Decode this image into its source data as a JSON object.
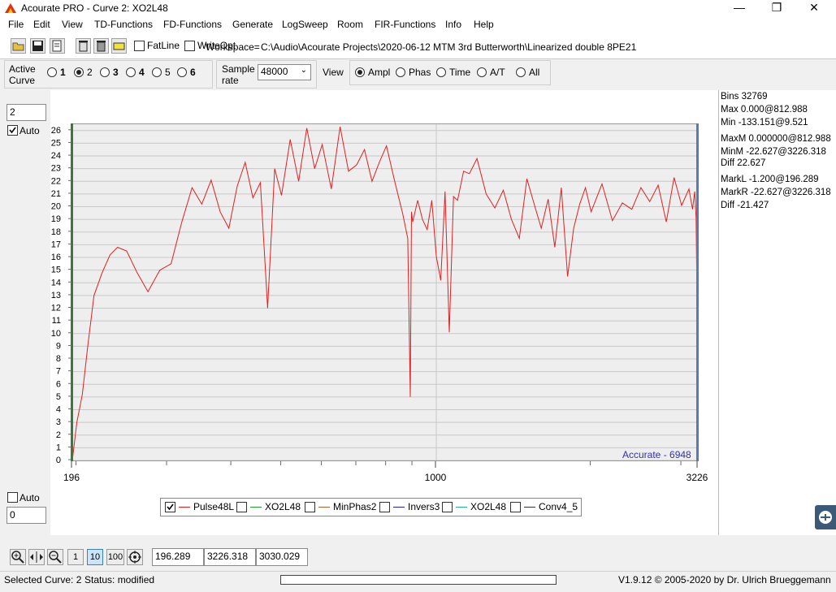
{
  "window": {
    "title": "Acourate PRO - Curve 2: XO2L48",
    "minimize": "—",
    "maximize": "❐",
    "close": "✕"
  },
  "menu": [
    "File",
    "Edit",
    "View",
    "TD-Functions",
    "FD-Functions",
    "Generate",
    "LogSweep",
    "Room",
    "FIR-Functions",
    "Info",
    "Help"
  ],
  "toolbar": {
    "fatline_label": "FatLine",
    "writeopt_label": "WriteOpt",
    "workspace_label": "Workspace=",
    "workspace_path": "C:\\Audio\\Acourate Projects\\2020-06-12 MTM 3rd Butterworth\\Linearized double 8PE21"
  },
  "controls": {
    "active_curve_label": "Active\nCurve",
    "curves": [
      {
        "label": "1",
        "bold": true
      },
      {
        "label": "2",
        "bold": false,
        "selected": true
      },
      {
        "label": "3",
        "bold": true
      },
      {
        "label": "4",
        "bold": true
      },
      {
        "label": "5",
        "bold": false
      },
      {
        "label": "6",
        "bold": true
      }
    ],
    "sample_rate_label": "Sample\nrate",
    "sample_rate_value": "48000",
    "view_label": "View",
    "views": [
      {
        "label": "Ampl",
        "selected": true
      },
      {
        "label": "Phas"
      },
      {
        "label": "Time"
      },
      {
        "label": "A/T"
      },
      {
        "label": "All"
      }
    ]
  },
  "plot": {
    "ymax_input": "2",
    "ymin_input": "0",
    "auto_top_label": "Auto",
    "auto_bottom_label": "Auto",
    "watermark": "Accurate - 6948"
  },
  "legend": [
    {
      "label": "Pulse48L",
      "color": "#e02020",
      "checked": true
    },
    {
      "label": "XO2L48",
      "color": "#20a020",
      "checked": false
    },
    {
      "label": "MinPhas2",
      "color": "#b06030",
      "checked": false
    },
    {
      "label": "Invers3",
      "color": "#2020d0",
      "checked": false
    },
    {
      "label": "XO2L48",
      "color": "#20b0a0",
      "checked": false
    },
    {
      "label": "Conv4_5",
      "color": "#303030",
      "checked": false
    }
  ],
  "stats": {
    "bins": "Bins 32769",
    "max": "Max 0.000@812.988",
    "min": "Min -133.151@9.521",
    "maxm": "MaxM 0.000000@812.988",
    "minm": "MinM -22.627@3226.318",
    "diff1": "Diff 22.627",
    "markl": "MarkL -1.200@196.289",
    "markr": "MarkR -22.627@3226.318",
    "diff2": "Diff -21.427"
  },
  "bottom": {
    "zoom1": "1",
    "zoom10": "10",
    "zoom100": "100",
    "field1": "196.289",
    "field2": "3226.318",
    "field3": "3030.029"
  },
  "status": {
    "selected": "Selected Curve: 2",
    "state": "Status: modified",
    "version": "V1.9.12 © 2005-2020 by Dr. Ulrich Brueggemann"
  },
  "chart_data": {
    "type": "line",
    "xlim": [
      196,
      3226
    ],
    "ylim": [
      0,
      26.5
    ],
    "x_tick_labels": [
      "196",
      "1000",
      "3226"
    ],
    "y_tick_labels": [
      "0",
      "1",
      "2",
      "3",
      "4",
      "5",
      "6",
      "7",
      "8",
      "9",
      "10",
      "11",
      "12",
      "13",
      "14",
      "15",
      "16",
      "17",
      "18",
      "19",
      "20",
      "21",
      "22",
      "23",
      "24",
      "25",
      "26"
    ],
    "series": [
      {
        "name": "Pulse48L",
        "color": "#e02020",
        "x": [
          196,
          200,
          205,
          210,
          216,
          224,
          232,
          240,
          250,
          262,
          275,
          290,
          305,
          320,
          335,
          350,
          365,
          380,
          395,
          410,
          425,
          440,
          455,
          470,
          485,
          500,
          520,
          540,
          560,
          580,
          600,
          625,
          650,
          675,
          700,
          725,
          750,
          775,
          800,
          830,
          860,
          880,
          890,
          895,
          900,
          920,
          940,
          960,
          980,
          1000,
          1020,
          1040,
          1060,
          1080,
          1100,
          1130,
          1160,
          1200,
          1250,
          1300,
          1350,
          1400,
          1450,
          1500,
          1550,
          1600,
          1650,
          1700,
          1750,
          1800,
          1850,
          1900,
          1950,
          2000,
          2100,
          2200,
          2300,
          2400,
          2500,
          2600,
          2700,
          2800,
          2900,
          3000,
          3100,
          3150,
          3180,
          3200,
          3210,
          3220,
          3226
        ],
        "y": [
          0,
          3,
          5.2,
          9,
          13,
          14.8,
          16.2,
          16.8,
          16.5,
          14.8,
          13.3,
          15,
          15.5,
          18.8,
          21.5,
          20.2,
          22.1,
          19.6,
          18.3,
          21.6,
          23.5,
          20.7,
          21.9,
          12,
          23,
          20.9,
          25.3,
          22,
          26.2,
          23,
          24.9,
          21.4,
          26.3,
          22.8,
          23.3,
          24.5,
          22,
          23.5,
          24.8,
          22,
          19.5,
          17.5,
          5,
          19.6,
          18.8,
          20.5,
          19,
          18.2,
          20.5,
          16.1,
          14.2,
          21.2,
          10.1,
          20.8,
          20.5,
          22.8,
          22.6,
          23.8,
          21,
          19.9,
          21.3,
          19,
          17.5,
          22.2,
          20.2,
          18.3,
          20.6,
          16.8,
          21.5,
          14.5,
          18.3,
          20.2,
          21.5,
          19.6,
          21.8,
          18.9,
          20.3,
          19.8,
          21.5,
          20.4,
          21.7,
          18.8,
          22.3,
          20.1,
          21.4,
          19.8,
          21.2,
          19.1,
          14.5,
          18.6,
          0
        ]
      }
    ]
  }
}
